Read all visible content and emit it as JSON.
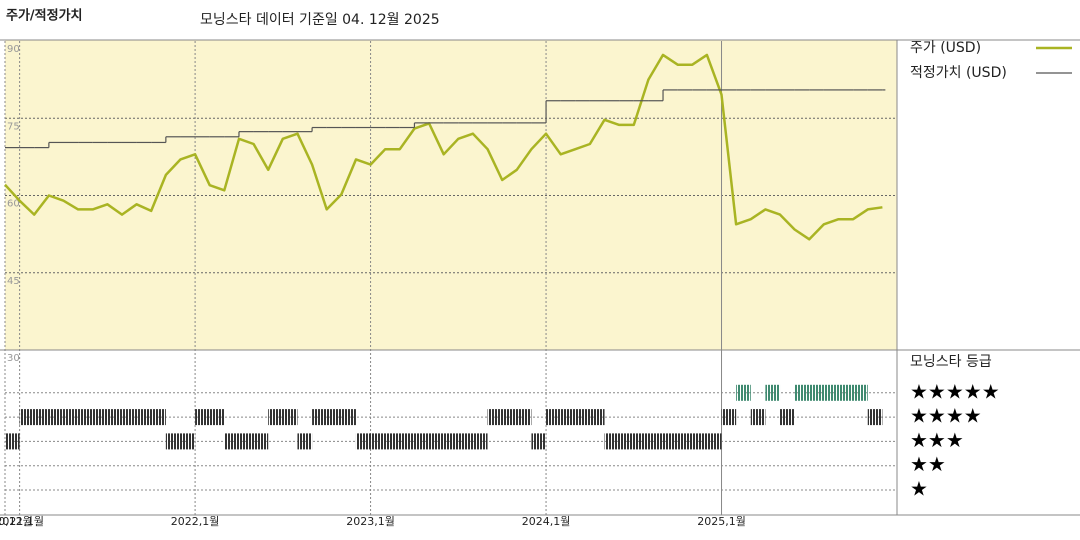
{
  "chart_data": {
    "type": "line",
    "title": "주가/적정가치",
    "subtitle": "모닝스타 데이터 기준일 04. 12월 2025",
    "x": [
      "2020-12",
      "2021-01",
      "2021-02",
      "2021-03",
      "2021-04",
      "2021-05",
      "2021-06",
      "2021-07",
      "2021-08",
      "2021-09",
      "2021-10",
      "2021-11",
      "2021-12",
      "2022-01",
      "2022-02",
      "2022-03",
      "2022-04",
      "2022-05",
      "2022-06",
      "2022-07",
      "2022-08",
      "2022-09",
      "2022-10",
      "2022-11",
      "2022-12",
      "2023-01",
      "2023-02",
      "2023-03",
      "2023-04",
      "2023-05",
      "2023-06",
      "2023-07",
      "2023-08",
      "2023-09",
      "2023-10",
      "2023-11",
      "2023-12",
      "2024-01",
      "2024-02",
      "2024-03",
      "2024-04",
      "2024-05",
      "2024-06",
      "2024-07",
      "2024-08",
      "2024-09",
      "2024-10",
      "2024-11",
      "2024-12",
      "2025-01",
      "2025-02",
      "2025-03",
      "2025-04",
      "2025-05",
      "2025-06",
      "2025-07",
      "2025-08",
      "2025-09",
      "2025-10",
      "2025-11",
      "2025-12"
    ],
    "series": [
      {
        "name": "주가 (USD)",
        "color": "#a9b423",
        "values": [
          62.1,
          59,
          56.3,
          60,
          59,
          57.3,
          57.3,
          58.3,
          56.3,
          58.3,
          57,
          64,
          67,
          68,
          62,
          61,
          71,
          70,
          65,
          71,
          72,
          66,
          57.3,
          60.2,
          67,
          66,
          69,
          69,
          73,
          74,
          68,
          71,
          72,
          69,
          63,
          65,
          69,
          72,
          68,
          69,
          70,
          74.7,
          73.7,
          73.7,
          82.5,
          87.3,
          85.4,
          85.4,
          87.3,
          79.6,
          54.4,
          55.4,
          57.3,
          56.3,
          53.4,
          51.5,
          54.4,
          55.4,
          55.4,
          57.3,
          57.7
        ]
      },
      {
        "name": "적정가치 (USD)",
        "color": "#555555",
        "step": true,
        "values": [
          69.3,
          69.3,
          69.3,
          70.3,
          70.3,
          70.3,
          70.3,
          70.3,
          70.3,
          70.3,
          70.3,
          71.4,
          71.4,
          71.4,
          71.4,
          71.4,
          72.4,
          72.4,
          72.4,
          72.4,
          72.4,
          73.2,
          73.2,
          73.2,
          73.2,
          73.2,
          73.2,
          73.2,
          74.1,
          74.1,
          74.1,
          74.1,
          74.1,
          74.1,
          74.1,
          74.1,
          74.1,
          78.4,
          78.4,
          78.4,
          78.4,
          78.4,
          78.4,
          78.4,
          78.4,
          80.5,
          80.5,
          80.5,
          80.5,
          80.5,
          80.5,
          80.5,
          80.5,
          80.5,
          80.5,
          80.5,
          80.5,
          80.5,
          80.5,
          80.5,
          80.5
        ]
      }
    ],
    "xlim": [
      "2020-12",
      "2026-01"
    ],
    "xticks": [
      {
        "value": "2020-12",
        "label": "2020,12월"
      },
      {
        "value": "2021-01",
        "label": "2021,1월"
      },
      {
        "value": "2022-01",
        "label": "2022,1월"
      },
      {
        "value": "2023-01",
        "label": "2023,1월"
      },
      {
        "value": "2024-01",
        "label": "2024,1월"
      },
      {
        "value": "2025-01",
        "label": "2025,1월"
      }
    ],
    "ylim": [
      30,
      90
    ],
    "yticks": [
      30,
      45,
      60,
      75,
      90
    ],
    "grid": true,
    "rating_title": "모닝스타 등급",
    "rating_labels": [
      "★",
      "★★",
      "★★★",
      "★★★★",
      "★★★★★"
    ],
    "ratings": [
      {
        "start": "2020-12",
        "end": "2021-01",
        "stars": 3,
        "color": "#333333"
      },
      {
        "start": "2021-01",
        "end": "2021-11",
        "stars": 4,
        "color": "#333333"
      },
      {
        "start": "2021-11",
        "end": "2022-01",
        "stars": 3,
        "color": "#333333"
      },
      {
        "start": "2022-01",
        "end": "2022-03",
        "stars": 4,
        "color": "#333333"
      },
      {
        "start": "2022-03",
        "end": "2022-06",
        "stars": 3,
        "color": "#333333"
      },
      {
        "start": "2022-06",
        "end": "2022-08",
        "stars": 4,
        "color": "#333333"
      },
      {
        "start": "2022-08",
        "end": "2022-09",
        "stars": 3,
        "color": "#333333"
      },
      {
        "start": "2022-09",
        "end": "2022-12",
        "stars": 4,
        "color": "#333333"
      },
      {
        "start": "2022-12",
        "end": "2023-09",
        "stars": 3,
        "color": "#333333"
      },
      {
        "start": "2023-09",
        "end": "2023-12",
        "stars": 4,
        "color": "#333333"
      },
      {
        "start": "2023-12",
        "end": "2024-01",
        "stars": 3,
        "color": "#333333"
      },
      {
        "start": "2024-01",
        "end": "2024-05",
        "stars": 4,
        "color": "#333333"
      },
      {
        "start": "2024-05",
        "end": "2025-01",
        "stars": 3,
        "color": "#333333"
      },
      {
        "start": "2025-01",
        "end": "2025-02",
        "stars": 4,
        "color": "#333333"
      },
      {
        "start": "2025-02",
        "end": "2025-03",
        "stars": 5,
        "color": "#3f8a70"
      },
      {
        "start": "2025-03",
        "end": "2025-04",
        "stars": 4,
        "color": "#333333"
      },
      {
        "start": "2025-04",
        "end": "2025-05",
        "stars": 5,
        "color": "#3f8a70"
      },
      {
        "start": "2025-05",
        "end": "2025-06",
        "stars": 4,
        "color": "#333333"
      },
      {
        "start": "2025-06",
        "end": "2025-11",
        "stars": 5,
        "color": "#3f8a70"
      },
      {
        "start": "2025-11",
        "end": "2025-12",
        "stars": 4,
        "color": "#333333"
      }
    ]
  }
}
